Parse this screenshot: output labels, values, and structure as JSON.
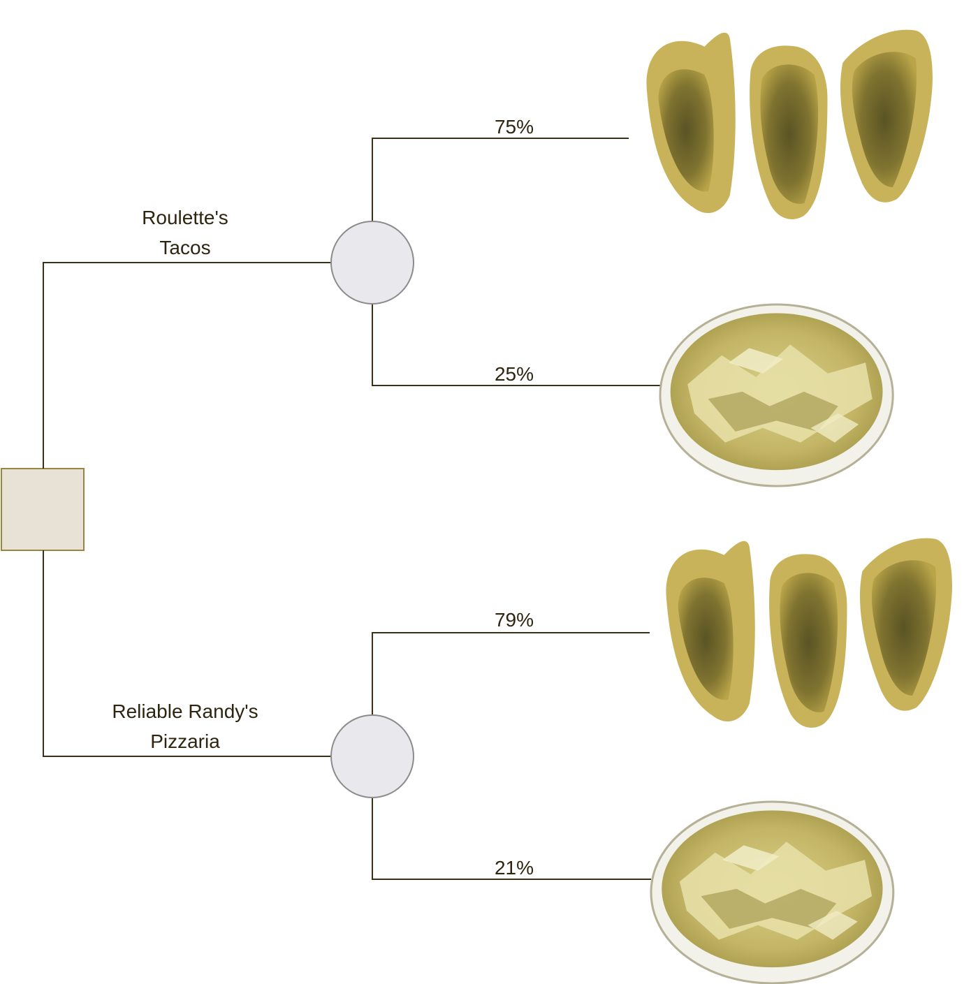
{
  "diagram": {
    "type": "decision-tree",
    "decision_node": {
      "shape": "square",
      "fill": "#e8e2d6",
      "stroke": "#9c8440"
    },
    "chance_node_style": {
      "shape": "circle",
      "fill": "#e9e8ec",
      "stroke": "#8b8b8b"
    },
    "options": [
      {
        "label_line1": "Roulette's",
        "label_line2": "Tacos",
        "outcomes": [
          {
            "probability": "75%",
            "image": "tacos-icon"
          },
          {
            "probability": "25%",
            "image": "salad-bowl-icon"
          }
        ]
      },
      {
        "label_line1": "Reliable Randy's",
        "label_line2": "Pizzaria",
        "outcomes": [
          {
            "probability": "79%",
            "image": "tacos-icon"
          },
          {
            "probability": "21%",
            "image": "salad-bowl-icon"
          }
        ]
      }
    ]
  }
}
